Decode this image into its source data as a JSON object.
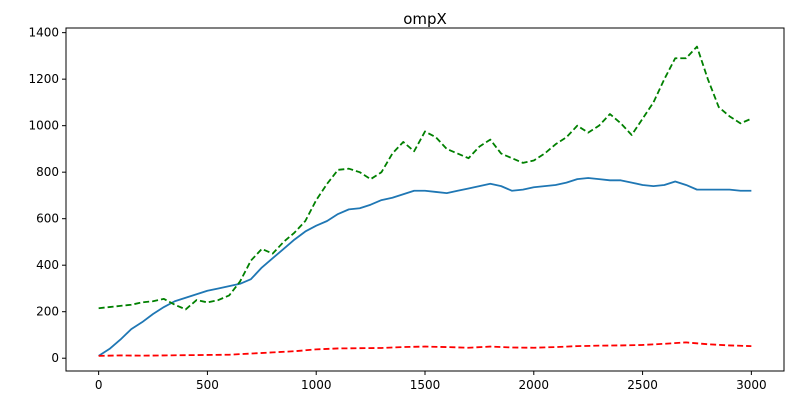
{
  "chart_data": {
    "type": "line",
    "title": "ompX",
    "xlabel": "",
    "ylabel": "",
    "xlim": [
      -150,
      3150
    ],
    "ylim": [
      -55,
      1420
    ],
    "x_ticks": [
      0,
      500,
      1000,
      1500,
      2000,
      2500,
      3000
    ],
    "y_ticks": [
      0,
      200,
      400,
      600,
      800,
      1000,
      1200,
      1400
    ],
    "grid": false,
    "legend": "none",
    "series": [
      {
        "color": "#1f77b4",
        "style": "solid",
        "x": [
          0,
          50,
          100,
          150,
          200,
          250,
          300,
          350,
          400,
          450,
          500,
          550,
          600,
          650,
          700,
          750,
          800,
          850,
          900,
          950,
          1000,
          1050,
          1100,
          1150,
          1200,
          1250,
          1300,
          1350,
          1400,
          1450,
          1500,
          1550,
          1600,
          1650,
          1700,
          1750,
          1800,
          1850,
          1900,
          1950,
          2000,
          2050,
          2100,
          2150,
          2200,
          2250,
          2300,
          2350,
          2400,
          2450,
          2500,
          2550,
          2600,
          2650,
          2700,
          2750,
          2800,
          2850,
          2900,
          2950,
          3000
        ],
        "values": [
          10,
          40,
          80,
          125,
          155,
          190,
          220,
          245,
          260,
          275,
          290,
          300,
          310,
          320,
          340,
          390,
          430,
          470,
          510,
          545,
          570,
          590,
          620,
          640,
          645,
          660,
          680,
          690,
          705,
          720,
          720,
          715,
          710,
          720,
          730,
          740,
          750,
          740,
          720,
          725,
          735,
          740,
          745,
          755,
          770,
          775,
          770,
          765,
          765,
          755,
          745,
          740,
          745,
          760,
          745,
          725,
          725,
          725,
          725,
          720,
          720
        ]
      },
      {
        "color": "#008000",
        "style": "dashed",
        "x": [
          0,
          50,
          100,
          150,
          200,
          250,
          300,
          350,
          400,
          450,
          500,
          550,
          600,
          650,
          700,
          750,
          800,
          850,
          900,
          950,
          1000,
          1050,
          1100,
          1150,
          1200,
          1250,
          1300,
          1350,
          1400,
          1450,
          1500,
          1550,
          1600,
          1650,
          1700,
          1750,
          1800,
          1850,
          1900,
          1950,
          2000,
          2050,
          2100,
          2150,
          2200,
          2250,
          2300,
          2350,
          2400,
          2450,
          2500,
          2550,
          2600,
          2650,
          2700,
          2750,
          2800,
          2850,
          2900,
          2950,
          3000
        ],
        "values": [
          215,
          220,
          225,
          230,
          240,
          245,
          255,
          230,
          210,
          250,
          240,
          250,
          270,
          330,
          420,
          470,
          450,
          500,
          540,
          590,
          680,
          750,
          810,
          815,
          800,
          770,
          800,
          880,
          930,
          890,
          975,
          950,
          900,
          880,
          860,
          910,
          940,
          880,
          860,
          840,
          850,
          880,
          920,
          950,
          1000,
          970,
          1000,
          1050,
          1010,
          960,
          1030,
          1100,
          1200,
          1290,
          1290,
          1340,
          1200,
          1080,
          1040,
          1010,
          1030
        ]
      },
      {
        "color": "#ff0000",
        "style": "dashed",
        "x": [
          0,
          100,
          200,
          300,
          400,
          500,
          600,
          700,
          800,
          900,
          1000,
          1100,
          1200,
          1300,
          1400,
          1500,
          1600,
          1700,
          1800,
          1900,
          2000,
          2100,
          2200,
          2300,
          2400,
          2500,
          2600,
          2700,
          2800,
          2900,
          3000
        ],
        "values": [
          10,
          12,
          11,
          12,
          13,
          14,
          15,
          20,
          25,
          30,
          38,
          42,
          43,
          44,
          48,
          50,
          48,
          45,
          50,
          46,
          45,
          48,
          52,
          54,
          55,
          57,
          62,
          68,
          60,
          55,
          52
        ]
      }
    ]
  }
}
